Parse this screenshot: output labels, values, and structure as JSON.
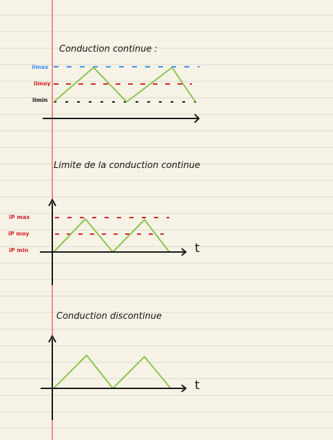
{
  "sections": [
    {
      "title": "Conduction continue :",
      "labels": {
        "max": "ilmax",
        "moy": "ilmoy",
        "min": "ilmin"
      },
      "colors": {
        "max": "#3b8fe8",
        "moy": "#d41f24",
        "min": "#151515",
        "wave": "#8bc34a",
        "axis": "#141414"
      }
    },
    {
      "title": "Limite de la conduction continue",
      "labels": {
        "max": "iP max",
        "moy": "iP moy",
        "min": "iP min",
        "time": "t"
      },
      "colors": {
        "max": "#d41f24",
        "moy": "#d41f24",
        "min": "#141414",
        "wave": "#8bc34a",
        "axis": "#141414"
      }
    },
    {
      "title": "Conduction discontinue",
      "labels": {
        "time": "t"
      },
      "colors": {
        "wave": "#8bc34a",
        "axis": "#141414"
      }
    }
  ],
  "paper": {
    "background": "#f6f3e6",
    "rule_color": "#d9d8d1",
    "margin_color": "#e56a6a"
  }
}
